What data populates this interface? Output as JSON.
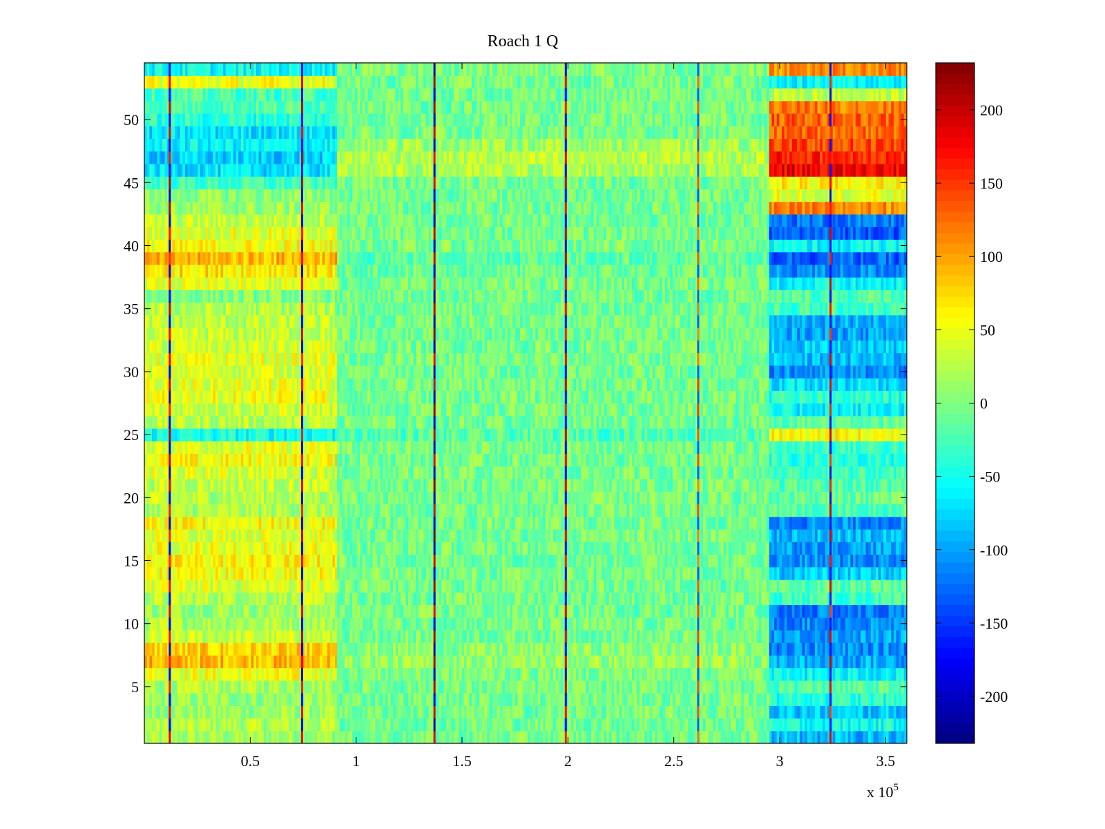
{
  "chart_data": {
    "type": "heatmap",
    "title": "Roach 1 Q",
    "xlabel": "",
    "ylabel": "",
    "x_multiplier": "x 10",
    "x_exponent": "5",
    "xlim": [
      0,
      3.6
    ],
    "ylim": [
      0.5,
      54.5
    ],
    "x_ticks": [
      {
        "value": 0.5,
        "label": "0.5"
      },
      {
        "value": 1,
        "label": "1"
      },
      {
        "value": 1.5,
        "label": "1.5"
      },
      {
        "value": 2,
        "label": "2"
      },
      {
        "value": 2.5,
        "label": "2.5"
      },
      {
        "value": 3,
        "label": "3"
      },
      {
        "value": 3.5,
        "label": "3.5"
      }
    ],
    "y_ticks": [
      {
        "value": 5,
        "label": "5"
      },
      {
        "value": 10,
        "label": "10"
      },
      {
        "value": 15,
        "label": "15"
      },
      {
        "value": 20,
        "label": "20"
      },
      {
        "value": 25,
        "label": "25"
      },
      {
        "value": 30,
        "label": "30"
      },
      {
        "value": 35,
        "label": "35"
      },
      {
        "value": 40,
        "label": "40"
      },
      {
        "value": 45,
        "label": "45"
      },
      {
        "value": 50,
        "label": "50"
      }
    ],
    "rows": 54,
    "colorbar": {
      "colormap": "jet",
      "clim": [
        -232,
        232
      ],
      "ticks": [
        {
          "value": 200,
          "label": "200"
        },
        {
          "value": 150,
          "label": "150"
        },
        {
          "value": 100,
          "label": "100"
        },
        {
          "value": 50,
          "label": "50"
        },
        {
          "value": 0,
          "label": "0"
        },
        {
          "value": -50,
          "label": "-50"
        },
        {
          "value": -100,
          "label": "-100"
        },
        {
          "value": -150,
          "label": "-150"
        },
        {
          "value": -200,
          "label": "-200"
        }
      ]
    },
    "segments": [
      {
        "x_start": 0.0,
        "x_end": 0.91,
        "base": 30,
        "row_levels": {
          "1": 15,
          "2": 22,
          "3": 12,
          "4": 10,
          "5": 20,
          "6": 50,
          "7": 90,
          "8": 75,
          "9": 30,
          "10": 22,
          "11": 15,
          "12": 25,
          "13": 40,
          "14": 55,
          "15": 60,
          "16": 50,
          "17": 45,
          "18": 55,
          "19": 20,
          "20": 25,
          "21": 30,
          "22": 40,
          "23": 55,
          "24": 45,
          "25": -50,
          "26": 25,
          "27": 35,
          "28": 50,
          "29": 45,
          "30": 40,
          "31": 45,
          "32": 35,
          "33": 30,
          "34": 25,
          "35": 20,
          "36": 0,
          "37": 40,
          "38": 70,
          "39": 90,
          "40": 55,
          "41": 45,
          "42": 30,
          "43": 10,
          "44": 5,
          "45": -30,
          "46": -70,
          "47": -80,
          "48": -60,
          "49": -70,
          "50": -40,
          "51": -20,
          "52": -25,
          "53": 50,
          "54": -55
        }
      },
      {
        "x_start": 0.91,
        "x_end": 2.95,
        "base": -5,
        "row_levels": {
          "6": 0,
          "7": 10,
          "8": 5,
          "25": -20,
          "38": -10,
          "39": -15,
          "46": 20,
          "47": 25,
          "48": 15,
          "53": -5,
          "54": 0
        }
      },
      {
        "x_start": 2.95,
        "x_end": 3.6,
        "base": -40,
        "row_levels": {
          "1": -90,
          "2": -50,
          "3": -85,
          "4": -40,
          "5": -20,
          "6": -60,
          "7": -95,
          "8": -110,
          "9": -100,
          "10": -110,
          "11": -120,
          "12": -30,
          "13": -20,
          "14": -80,
          "15": -110,
          "16": -100,
          "17": -90,
          "18": -110,
          "19": -20,
          "20": -10,
          "21": -20,
          "22": -30,
          "23": -40,
          "24": -30,
          "25": 55,
          "26": -10,
          "27": -60,
          "28": -40,
          "29": -70,
          "30": -110,
          "31": -90,
          "32": -80,
          "33": -100,
          "34": -90,
          "35": -30,
          "36": -20,
          "37": -60,
          "38": -110,
          "39": -130,
          "40": -60,
          "41": -130,
          "42": -120,
          "43": 110,
          "44": 45,
          "45": 60,
          "46": 180,
          "47": 160,
          "48": 140,
          "49": 130,
          "50": 130,
          "51": 120,
          "52": 30,
          "53": -60,
          "54": 110
        }
      }
    ],
    "vertical_lines": [
      {
        "x": 0.12,
        "value": 180
      },
      {
        "x": 0.745,
        "value": 180
      },
      {
        "x": 1.37,
        "value": 200
      },
      {
        "x": 1.99,
        "value": 180
      },
      {
        "x": 2.615,
        "value": 130
      },
      {
        "x": 3.24,
        "value": 170
      }
    ]
  }
}
